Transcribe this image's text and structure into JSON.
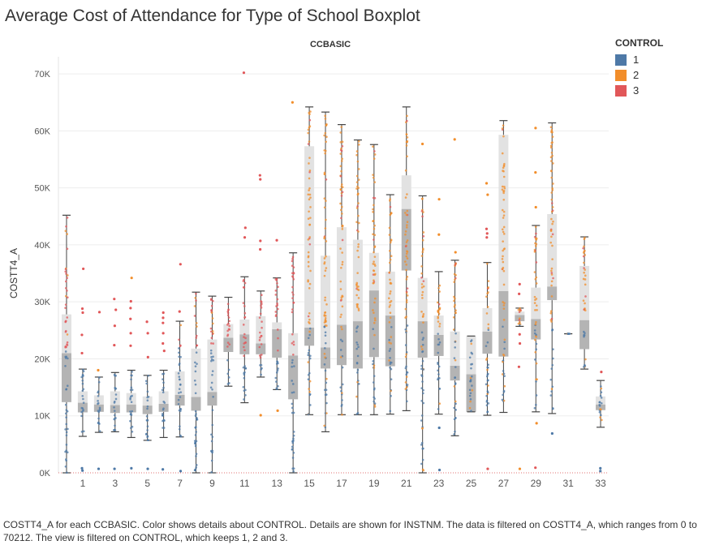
{
  "title": "Average Cost of Attendance for Type of School Boxplot",
  "caption": "COSTT4_A for each CCBASIC.  Color shows details about CONTROL.  Details are shown for INSTNM. The data is filtered on COSTT4_A, which ranges from 0 to 70212. The view is filtered on CONTROL, which keeps 1, 2 and 3.",
  "legend": {
    "title": "CONTROL",
    "items": [
      {
        "label": "1",
        "color": "#4e79a7"
      },
      {
        "label": "2",
        "color": "#f28e2b"
      },
      {
        "label": "3",
        "color": "#e15759"
      }
    ]
  },
  "chart_data": {
    "type": "boxplot",
    "title": "Average Cost of Attendance for Type of School Boxplot",
    "column_header": "CCBASIC",
    "ylabel": "COSTT4_A",
    "ylim": [
      0,
      73000
    ],
    "yticks": [
      0,
      10000,
      20000,
      30000,
      40000,
      50000,
      60000,
      70000
    ],
    "ytick_labels": [
      "0K",
      "10K",
      "20K",
      "30K",
      "40K",
      "50K",
      "60K",
      "70K"
    ],
    "xlim": [
      -0.5,
      33.5
    ],
    "xticks": [
      1,
      3,
      5,
      7,
      9,
      11,
      13,
      15,
      17,
      19,
      21,
      23,
      25,
      27,
      29,
      31,
      33
    ],
    "grid": true,
    "colors": {
      "1": "#4e79a7",
      "2": "#f28e2b",
      "3": "#e15759"
    },
    "boxes": [
      {
        "category": 0,
        "wl": 0,
        "q1": 12400,
        "median": 21000,
        "q3": 27800,
        "wh": 45200
      },
      {
        "category": 1,
        "wl": 6400,
        "q1": 10600,
        "median": 12300,
        "q3": 14300,
        "wh": 18200
      },
      {
        "category": 2,
        "wl": 7100,
        "q1": 10700,
        "median": 12000,
        "q3": 13600,
        "wh": 16800
      },
      {
        "category": 3,
        "wl": 7200,
        "q1": 10500,
        "median": 11900,
        "q3": 14300,
        "wh": 17600
      },
      {
        "category": 4,
        "wl": 6200,
        "q1": 10600,
        "median": 12000,
        "q3": 14000,
        "wh": 18000
      },
      {
        "category": 5,
        "wl": 5700,
        "q1": 10300,
        "median": 11800,
        "q3": 13400,
        "wh": 17100
      },
      {
        "category": 6,
        "wl": 6200,
        "q1": 10700,
        "median": 12100,
        "q3": 14300,
        "wh": 18000
      },
      {
        "category": 7,
        "wl": 6300,
        "q1": 11800,
        "median": 13700,
        "q3": 17800,
        "wh": 26600
      },
      {
        "category": 8,
        "wl": 0,
        "q1": 10900,
        "median": 13300,
        "q3": 21800,
        "wh": 31700
      },
      {
        "category": 9,
        "wl": 0,
        "q1": 11800,
        "median": 14200,
        "q3": 23400,
        "wh": 31000
      },
      {
        "category": 10,
        "wl": 15200,
        "q1": 21200,
        "median": 23700,
        "q3": 26100,
        "wh": 30800
      },
      {
        "category": 11,
        "wl": 12300,
        "q1": 20800,
        "median": 24300,
        "q3": 26900,
        "wh": 34400
      },
      {
        "category": 12,
        "wl": 16800,
        "q1": 20800,
        "median": 22700,
        "q3": 27500,
        "wh": 31900
      },
      {
        "category": 13,
        "wl": 14600,
        "q1": 20200,
        "median": 25200,
        "q3": 26400,
        "wh": 34200
      },
      {
        "category": 14,
        "wl": 0,
        "q1": 12900,
        "median": 20600,
        "q3": 24500,
        "wh": 38600
      },
      {
        "category": 15,
        "wl": 10200,
        "q1": 22300,
        "median": 25500,
        "q3": 57300,
        "wh": 64200
      },
      {
        "category": 16,
        "wl": 7200,
        "q1": 18300,
        "median": 22000,
        "q3": 38100,
        "wh": 63300
      },
      {
        "category": 17,
        "wl": 10200,
        "q1": 18900,
        "median": 26000,
        "q3": 43100,
        "wh": 61100
      },
      {
        "category": 18,
        "wl": 10200,
        "q1": 18300,
        "median": 26600,
        "q3": 40900,
        "wh": 58400
      },
      {
        "category": 19,
        "wl": 10200,
        "q1": 20300,
        "median": 32000,
        "q3": 38600,
        "wh": 57600
      },
      {
        "category": 20,
        "wl": 10300,
        "q1": 18700,
        "median": 27600,
        "q3": 35300,
        "wh": 48800
      },
      {
        "category": 21,
        "wl": 10900,
        "q1": 35500,
        "median": 46300,
        "q3": 52200,
        "wh": 64200
      },
      {
        "category": 22,
        "wl": 0,
        "q1": 20200,
        "median": 26600,
        "q3": 34200,
        "wh": 48600
      },
      {
        "category": 23,
        "wl": 10300,
        "q1": 20500,
        "median": 24200,
        "q3": 27600,
        "wh": 35300
      },
      {
        "category": 24,
        "wl": 6500,
        "q1": 16200,
        "median": 18800,
        "q3": 24800,
        "wh": 37300
      },
      {
        "category": 25,
        "wl": 10700,
        "q1": 10700,
        "median": 17300,
        "q3": 24000,
        "wh": 24000
      },
      {
        "category": 26,
        "wl": 10100,
        "q1": 20900,
        "median": 24800,
        "q3": 28900,
        "wh": 36900
      },
      {
        "category": 27,
        "wl": 10600,
        "q1": 20400,
        "median": 31900,
        "q3": 59300,
        "wh": 61800
      },
      {
        "category": 28,
        "wl": 25700,
        "q1": 26600,
        "median": 27700,
        "q3": 28300,
        "wh": 28900
      },
      {
        "category": 29,
        "wl": 10700,
        "q1": 23400,
        "median": 27000,
        "q3": 32500,
        "wh": 43400
      },
      {
        "category": 30,
        "wl": 10400,
        "q1": 30300,
        "median": 32700,
        "q3": 45400,
        "wh": 61400
      },
      {
        "category": 31,
        "wl": 24400,
        "q1": 24400,
        "median": 24400,
        "q3": 24400,
        "wh": 24400
      },
      {
        "category": 32,
        "wl": 18200,
        "q1": 21700,
        "median": 26800,
        "q3": 36300,
        "wh": 41400
      },
      {
        "category": 33,
        "wl": 8000,
        "q1": 11000,
        "median": 12000,
        "q3": 13400,
        "wh": 16200
      }
    ],
    "outliers": [
      {
        "category": 1,
        "value": 35800,
        "control": "3"
      },
      {
        "category": 1,
        "value": 28800,
        "control": "3"
      },
      {
        "category": 1,
        "value": 28100,
        "control": "3"
      },
      {
        "category": 1,
        "value": 24200,
        "control": "3"
      },
      {
        "category": 1,
        "value": 21000,
        "control": "3"
      },
      {
        "category": 1,
        "value": 800,
        "control": "1"
      },
      {
        "category": 1,
        "value": 400,
        "control": "1"
      },
      {
        "category": 2,
        "value": 28200,
        "control": "3"
      },
      {
        "category": 2,
        "value": 18000,
        "control": "2"
      },
      {
        "category": 2,
        "value": 700,
        "control": "1"
      },
      {
        "category": 3,
        "value": 30500,
        "control": "3"
      },
      {
        "category": 3,
        "value": 28600,
        "control": "3"
      },
      {
        "category": 3,
        "value": 25800,
        "control": "3"
      },
      {
        "category": 3,
        "value": 22400,
        "control": "3"
      },
      {
        "category": 3,
        "value": 700,
        "control": "1"
      },
      {
        "category": 4,
        "value": 34200,
        "control": "2"
      },
      {
        "category": 4,
        "value": 30100,
        "control": "3"
      },
      {
        "category": 4,
        "value": 28900,
        "control": "3"
      },
      {
        "category": 4,
        "value": 27000,
        "control": "3"
      },
      {
        "category": 4,
        "value": 24500,
        "control": "3"
      },
      {
        "category": 4,
        "value": 22300,
        "control": "3"
      },
      {
        "category": 4,
        "value": 800,
        "control": "1"
      },
      {
        "category": 5,
        "value": 26500,
        "control": "3"
      },
      {
        "category": 5,
        "value": 24500,
        "control": "3"
      },
      {
        "category": 5,
        "value": 20300,
        "control": "3"
      },
      {
        "category": 5,
        "value": 700,
        "control": "1"
      },
      {
        "category": 6,
        "value": 28100,
        "control": "3"
      },
      {
        "category": 6,
        "value": 27200,
        "control": "3"
      },
      {
        "category": 6,
        "value": 26300,
        "control": "3"
      },
      {
        "category": 6,
        "value": 24500,
        "control": "3"
      },
      {
        "category": 6,
        "value": 22700,
        "control": "3"
      },
      {
        "category": 6,
        "value": 21400,
        "control": "3"
      },
      {
        "category": 6,
        "value": 600,
        "control": "1"
      },
      {
        "category": 7,
        "value": 36600,
        "control": "3"
      },
      {
        "category": 7,
        "value": 28300,
        "control": "3"
      },
      {
        "category": 7,
        "value": 300,
        "control": "1"
      },
      {
        "category": 11,
        "value": 70200,
        "control": "3"
      },
      {
        "category": 11,
        "value": 43000,
        "control": "3"
      },
      {
        "category": 11,
        "value": 41300,
        "control": "3"
      },
      {
        "category": 12,
        "value": 52200,
        "control": "3"
      },
      {
        "category": 12,
        "value": 51500,
        "control": "3"
      },
      {
        "category": 12,
        "value": 40700,
        "control": "3"
      },
      {
        "category": 12,
        "value": 39200,
        "control": "3"
      },
      {
        "category": 12,
        "value": 10100,
        "control": "2"
      },
      {
        "category": 13,
        "value": 40800,
        "control": "3"
      },
      {
        "category": 13,
        "value": 10900,
        "control": "2"
      },
      {
        "category": 14,
        "value": 65000,
        "control": "2"
      },
      {
        "category": 22,
        "value": 57700,
        "control": "2"
      },
      {
        "category": 23,
        "value": 48000,
        "control": "2"
      },
      {
        "category": 23,
        "value": 41800,
        "control": "2"
      },
      {
        "category": 23,
        "value": 7900,
        "control": "1"
      },
      {
        "category": 23,
        "value": 500,
        "control": "1"
      },
      {
        "category": 24,
        "value": 58500,
        "control": "2"
      },
      {
        "category": 24,
        "value": 38700,
        "control": "2"
      },
      {
        "category": 26,
        "value": 50800,
        "control": "2"
      },
      {
        "category": 26,
        "value": 48800,
        "control": "2"
      },
      {
        "category": 26,
        "value": 42800,
        "control": "3"
      },
      {
        "category": 26,
        "value": 42000,
        "control": "3"
      },
      {
        "category": 26,
        "value": 41300,
        "control": "3"
      },
      {
        "category": 26,
        "value": 700,
        "control": "3"
      },
      {
        "category": 28,
        "value": 33100,
        "control": "3"
      },
      {
        "category": 28,
        "value": 31400,
        "control": "3"
      },
      {
        "category": 28,
        "value": 24300,
        "control": "3"
      },
      {
        "category": 28,
        "value": 22700,
        "control": "3"
      },
      {
        "category": 28,
        "value": 18600,
        "control": "3"
      },
      {
        "category": 28,
        "value": 700,
        "control": "2"
      },
      {
        "category": 29,
        "value": 60500,
        "control": "2"
      },
      {
        "category": 29,
        "value": 52700,
        "control": "2"
      },
      {
        "category": 29,
        "value": 46600,
        "control": "2"
      },
      {
        "category": 29,
        "value": 8700,
        "control": "2"
      },
      {
        "category": 29,
        "value": 900,
        "control": "3"
      },
      {
        "category": 30,
        "value": 6900,
        "control": "1"
      },
      {
        "category": 33,
        "value": 17700,
        "control": "3"
      },
      {
        "category": 33,
        "value": 800,
        "control": "1"
      },
      {
        "category": 33,
        "value": 300,
        "control": "1"
      }
    ]
  }
}
